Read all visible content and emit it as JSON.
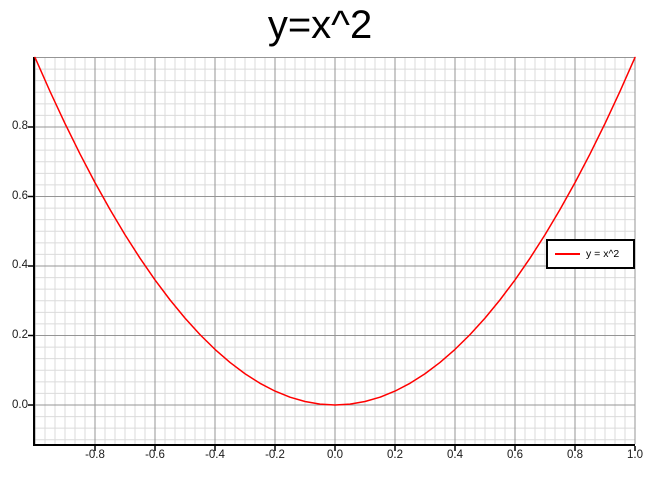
{
  "chart_data": {
    "type": "line",
    "title": "y=x^2",
    "xlabel": "",
    "ylabel": "",
    "xlim": [
      -1.0,
      1.0
    ],
    "ylim": [
      -0.1122,
      1.0014
    ],
    "major_step": 0.2,
    "minor_per_major": 6,
    "grid": {
      "minor_color": "#dbdbdb",
      "major_color": "#959595",
      "minor": true,
      "major": true
    },
    "axis_color": "#000000",
    "tick_label_color": "#1a1a1a",
    "x_tick_values": [
      -0.8,
      -0.6,
      -0.4,
      -0.2,
      0.0,
      0.2,
      0.4,
      0.6,
      0.8,
      1.0
    ],
    "x_tick_labels": [
      "-0.8",
      "-0.6",
      "-0.4",
      "-0.2",
      "0.0",
      "0.2",
      "0.4",
      "0.6",
      "0.8",
      "1.0"
    ],
    "y_tick_values": [
      0.0,
      0.2,
      0.4,
      0.6,
      0.8
    ],
    "y_tick_labels": [
      "0.0",
      "0.2",
      "0.4",
      "0.6",
      "0.8"
    ],
    "legend": {
      "label": "y = x^2",
      "position": "right-middle"
    },
    "series": [
      {
        "name": "y = x^2",
        "color": "#ff0000",
        "points": [
          [
            -1.0,
            1.0
          ],
          [
            -0.95,
            0.9025
          ],
          [
            -0.9,
            0.81
          ],
          [
            -0.85,
            0.7225
          ],
          [
            -0.8,
            0.64
          ],
          [
            -0.75,
            0.5625
          ],
          [
            -0.7,
            0.49
          ],
          [
            -0.65,
            0.4225
          ],
          [
            -0.6,
            0.36
          ],
          [
            -0.55,
            0.3025
          ],
          [
            -0.5,
            0.25
          ],
          [
            -0.45,
            0.2025
          ],
          [
            -0.4,
            0.16
          ],
          [
            -0.35,
            0.1225
          ],
          [
            -0.3,
            0.09
          ],
          [
            -0.25,
            0.0625
          ],
          [
            -0.2,
            0.04
          ],
          [
            -0.15,
            0.0225
          ],
          [
            -0.1,
            0.01
          ],
          [
            -0.05,
            0.0025
          ],
          [
            0.0,
            0.0
          ],
          [
            0.05,
            0.0025
          ],
          [
            0.1,
            0.01
          ],
          [
            0.15,
            0.0225
          ],
          [
            0.2,
            0.04
          ],
          [
            0.25,
            0.0625
          ],
          [
            0.3,
            0.09
          ],
          [
            0.35,
            0.1225
          ],
          [
            0.4,
            0.16
          ],
          [
            0.45,
            0.2025
          ],
          [
            0.5,
            0.25
          ],
          [
            0.55,
            0.3025
          ],
          [
            0.6,
            0.36
          ],
          [
            0.65,
            0.4225
          ],
          [
            0.7,
            0.49
          ],
          [
            0.75,
            0.5625
          ],
          [
            0.8,
            0.64
          ],
          [
            0.85,
            0.7225
          ],
          [
            0.9,
            0.81
          ],
          [
            0.95,
            0.9025
          ],
          [
            1.0,
            1.0
          ]
        ]
      }
    ]
  }
}
